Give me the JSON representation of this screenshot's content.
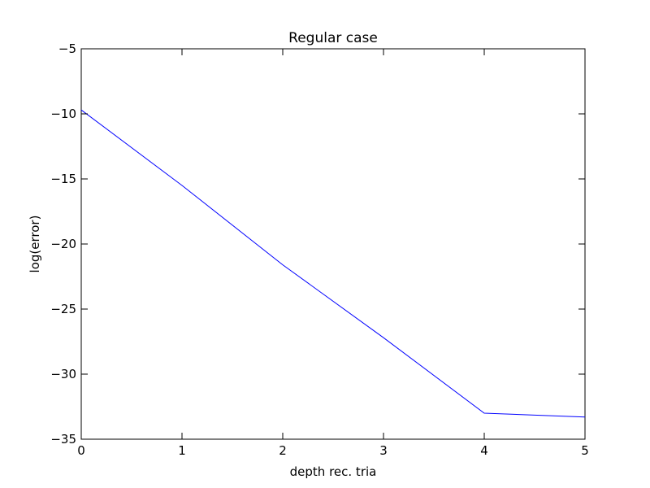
{
  "chart_data": {
    "type": "line",
    "title": "Regular case",
    "xlabel": "depth rec. tria",
    "ylabel": "log(error)",
    "xlim": [
      0,
      5
    ],
    "ylim": [
      -35,
      -5
    ],
    "xticks": [
      0,
      1,
      2,
      3,
      4,
      5
    ],
    "yticks": [
      -5,
      -10,
      -15,
      -20,
      -25,
      -30,
      -35
    ],
    "xtick_labels": [
      "0",
      "1",
      "2",
      "3",
      "4",
      "5"
    ],
    "ytick_labels": [
      "−5",
      "−10",
      "−15",
      "−20",
      "−25",
      "−30",
      "−35"
    ],
    "grid": false,
    "series": [
      {
        "x": [
          0,
          1,
          2,
          3,
          4,
          5
        ],
        "y": [
          -9.7,
          -15.5,
          -21.6,
          -27.2,
          -33.0,
          -33.3
        ],
        "color": "#0000ff"
      }
    ]
  }
}
